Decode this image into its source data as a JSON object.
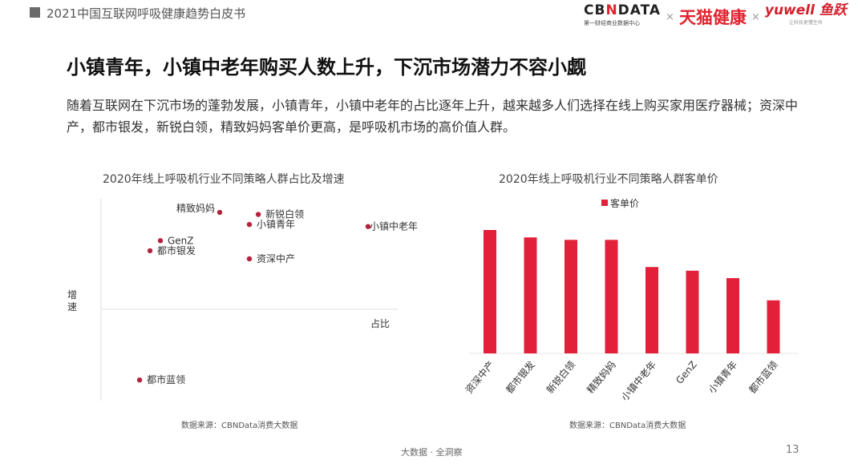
{
  "header": {
    "title": "2021中国互联网呼吸健康趋势白皮书",
    "logos": [
      "CBNDATA 第一财经商业数据中心",
      "天猫健康",
      "yuwell 鱼跃 让科技更懂生命"
    ]
  },
  "headline": "小镇青年，小镇中老年购买人数上升，下沉市场潜力不容小觑",
  "description": "随着互联网在下沉市场的蓬勃发展，小镇青年，小镇中老年的占比逐年上升，越来越多人们选择在线上购买家用医疗器械；资深中产，都市银发，新锐白领，精致妈妈客单价更高，是呼吸机市场的高价值人群。",
  "chart_data": [
    {
      "type": "scatter",
      "title": "2020年线上呼吸机行业不同策略人群占比及增速",
      "xlabel": "占比",
      "ylabel": "增速",
      "grid": false,
      "color": "#b5223e",
      "points": [
        {
          "label": "精致妈妈",
          "x": 40,
          "y": 48
        },
        {
          "label": "新锐白领",
          "x": 53,
          "y": 47
        },
        {
          "label": "小镇青年",
          "x": 50,
          "y": 42
        },
        {
          "label": "小镇中老年",
          "x": 90,
          "y": 41
        },
        {
          "label": "GenZ",
          "x": 20,
          "y": 34
        },
        {
          "label": "都市银发",
          "x": 16.5,
          "y": 29
        },
        {
          "label": "资深中产",
          "x": 50,
          "y": 25
        },
        {
          "label": "都市蓝领",
          "x": 13,
          "y": -35
        }
      ],
      "xlim": [
        0,
        100
      ],
      "ylim": [
        -45,
        55
      ],
      "source": "数据来源：CBNData消费大数据"
    },
    {
      "type": "bar",
      "title": "2020年线上呼吸机行业不同策略人群客单价",
      "legend": [
        "客单价"
      ],
      "legend_position": "top",
      "color": "#e2203a",
      "categories": [
        "资深中产",
        "都市银发",
        "新锐白领",
        "精致妈妈",
        "小镇中老年",
        "GenZ",
        "小镇青年",
        "都市蓝领"
      ],
      "values": [
        100,
        94,
        92,
        92,
        70,
        67,
        61,
        43
      ],
      "ylim": [
        0,
        100
      ],
      "source": "数据来源：CBNData消费大数据"
    }
  ],
  "footer": {
    "text": "大数据 · 全洞察",
    "page": "13"
  }
}
